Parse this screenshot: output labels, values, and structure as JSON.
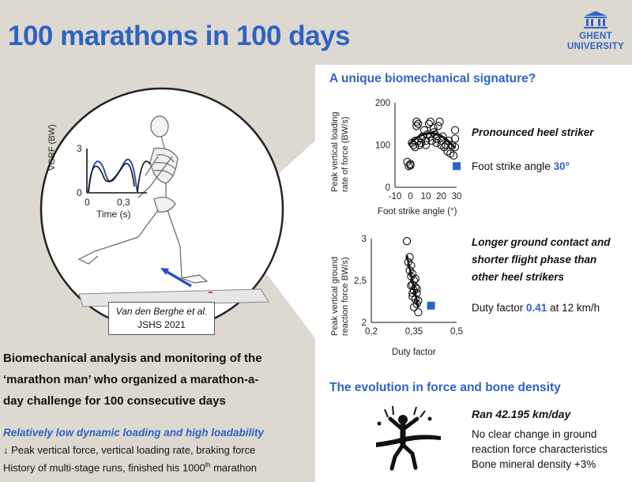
{
  "title": "100 marathons in 100 days",
  "logo": {
    "line1": "GHENT",
    "line2": "UNIVERSITY"
  },
  "illustration": {
    "chart_ylabel": "VGRF (BW)",
    "chart_xlabel": "Time (s)",
    "chart_yticks": [
      "3",
      "0"
    ],
    "chart_xticks": [
      "0",
      "0,3"
    ],
    "citation_line1": "Van den Berghe et al.",
    "citation_line2": "JSHS 2021"
  },
  "left": {
    "description_lines": [
      "Biomechanical analysis and monitoring of the",
      "‘marathon man’ who organized a marathon-a-",
      "day challenge for 100 consecutive days"
    ],
    "subtitle": "Relatively low dynamic loading and high loadability",
    "line1": "↓ Peak vertical force, vertical loading rate, braking force",
    "line2_prefix": "History of multi-stage runs, finished his 1000",
    "line2_sup": "th",
    "line2_suffix": " marathon"
  },
  "section1": {
    "title": "A unique biomechanical signature?",
    "finding1_title": "Pronounced heel striker",
    "finding1_prefix": "Foot strike angle ",
    "finding1_value": "30°",
    "finding2_title_lines": [
      "Longer ground contact and",
      "shorter flight phase than",
      "other heel strikers"
    ],
    "finding2_prefix": "Duty factor ",
    "finding2_value": "0.41",
    "finding2_suffix": " at 12 km/h"
  },
  "section2": {
    "title": "The evolution in force and bone density",
    "ran_label": "Ran  42.195 km/day",
    "lines": [
      "No clear change in ground",
      "reaction force characteristics",
      "Bone mineral density +3%"
    ]
  },
  "colors": {
    "accent": "#2e63c4",
    "background": "#ddd9d1",
    "panel": "#ffffff"
  },
  "chart_data": [
    {
      "type": "scatter",
      "title": "",
      "xlabel": "Foot strike angle (°)",
      "ylabel_lines": [
        "Peak vertical loading",
        "rate of force (BW/s)"
      ],
      "xlim": [
        -10,
        30
      ],
      "ylim": [
        0,
        200
      ],
      "xticks": [
        "-10",
        "0",
        "10",
        "20",
        "30"
      ],
      "yticks": [
        "200",
        "100",
        "0"
      ],
      "points": [
        [
          -2,
          60
        ],
        [
          -1,
          50
        ],
        [
          0,
          55
        ],
        [
          0,
          52
        ],
        [
          1,
          105
        ],
        [
          2,
          100
        ],
        [
          3,
          110
        ],
        [
          3,
          95
        ],
        [
          4,
          145
        ],
        [
          4,
          155
        ],
        [
          5,
          150
        ],
        [
          5,
          110
        ],
        [
          6,
          100
        ],
        [
          7,
          115
        ],
        [
          7,
          105
        ],
        [
          8,
          120
        ],
        [
          9,
          135
        ],
        [
          10,
          110
        ],
        [
          10,
          100
        ],
        [
          11,
          125
        ],
        [
          12,
          150
        ],
        [
          13,
          155
        ],
        [
          13,
          120
        ],
        [
          14,
          110
        ],
        [
          15,
          140
        ],
        [
          15,
          130
        ],
        [
          16,
          125
        ],
        [
          17,
          115
        ],
        [
          17,
          105
        ],
        [
          18,
          145
        ],
        [
          19,
          155
        ],
        [
          20,
          110
        ],
        [
          20,
          100
        ],
        [
          21,
          120
        ],
        [
          22,
          95
        ],
        [
          23,
          100
        ],
        [
          24,
          85
        ],
        [
          25,
          110
        ],
        [
          26,
          80
        ],
        [
          27,
          100
        ],
        [
          28,
          75
        ],
        [
          29,
          135
        ],
        [
          29,
          115
        ],
        [
          29,
          95
        ]
      ],
      "fit_line": "quadratic",
      "highlight": {
        "x": 30,
        "y": 50,
        "marker": "square"
      }
    },
    {
      "type": "scatter",
      "title": "",
      "xlabel": "Duty factor",
      "ylabel_lines": [
        "Peak vertical ground",
        "reaction force  BW/s)"
      ],
      "xlim": [
        0.2,
        0.5
      ],
      "ylim": [
        2,
        3
      ],
      "xticks": [
        "0,2",
        "0,35",
        "0,5"
      ],
      "yticks": [
        "3",
        "2,5",
        "2"
      ],
      "points": [
        [
          0.325,
          2.97
        ],
        [
          0.33,
          2.72
        ],
        [
          0.335,
          2.78
        ],
        [
          0.34,
          2.68
        ],
        [
          0.335,
          2.62
        ],
        [
          0.34,
          2.55
        ],
        [
          0.345,
          2.58
        ],
        [
          0.35,
          2.5
        ],
        [
          0.345,
          2.45
        ],
        [
          0.355,
          2.42
        ],
        [
          0.35,
          2.38
        ],
        [
          0.36,
          2.35
        ],
        [
          0.345,
          2.31
        ],
        [
          0.355,
          2.28
        ],
        [
          0.36,
          2.22
        ],
        [
          0.35,
          2.18
        ],
        [
          0.365,
          2.12
        ],
        [
          0.36,
          2.4
        ],
        [
          0.34,
          2.44
        ],
        [
          0.355,
          2.52
        ],
        [
          0.345,
          2.35
        ],
        [
          0.365,
          2.26
        ]
      ],
      "fit_line": "linear",
      "highlight": {
        "x": 0.41,
        "y": 2.2,
        "marker": "square"
      }
    }
  ]
}
